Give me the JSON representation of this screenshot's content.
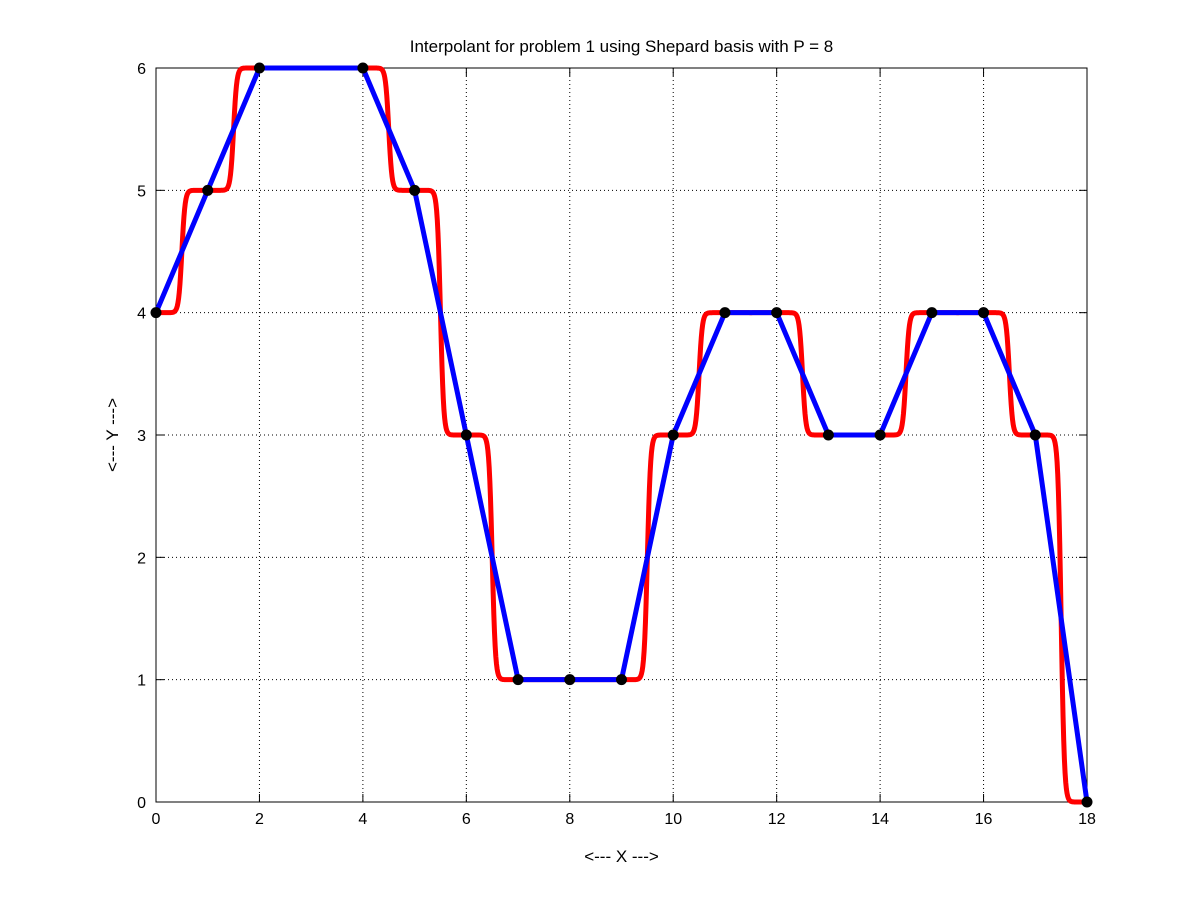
{
  "chart_data": {
    "type": "line",
    "title": "Interpolant for problem 1 using Shepard basis with P = 8",
    "xlabel": "<--- X --->",
    "ylabel": "<--- Y --->",
    "xlim": [
      0,
      18
    ],
    "ylim": [
      0,
      6
    ],
    "xticks": [
      0,
      2,
      4,
      6,
      8,
      10,
      12,
      14,
      16,
      18
    ],
    "yticks": [
      0,
      1,
      2,
      3,
      4,
      5,
      6
    ],
    "grid": true,
    "shepard_power": 8,
    "series": [
      {
        "style": "shepard-interpolant",
        "color": "#ff0000",
        "x": [
          0,
          1,
          2,
          3,
          4,
          5,
          6,
          7,
          8,
          9,
          10,
          11,
          12,
          13,
          14,
          15,
          16,
          17,
          18
        ],
        "y": [
          4,
          5,
          6,
          6,
          6,
          5,
          3,
          1,
          1,
          1,
          3,
          4,
          4,
          3,
          3,
          4,
          4,
          3,
          0
        ]
      },
      {
        "style": "piecewise-linear",
        "color": "#0000ff",
        "x": [
          0,
          1,
          2,
          3,
          4,
          5,
          6,
          7,
          8,
          9,
          10,
          11,
          12,
          13,
          14,
          15,
          16,
          17,
          18
        ],
        "y": [
          4,
          5,
          6,
          6,
          6,
          5,
          3,
          1,
          1,
          1,
          3,
          4,
          4,
          3,
          3,
          4,
          4,
          3,
          0
        ]
      },
      {
        "style": "markers",
        "color": "#000000",
        "x": [
          0,
          1,
          2,
          4,
          5,
          6,
          7,
          8,
          9,
          10,
          11,
          12,
          13,
          14,
          15,
          16,
          17,
          18
        ],
        "y": [
          4,
          5,
          6,
          6,
          5,
          3,
          1,
          1,
          1,
          3,
          4,
          4,
          3,
          3,
          4,
          4,
          3,
          0
        ]
      }
    ]
  }
}
